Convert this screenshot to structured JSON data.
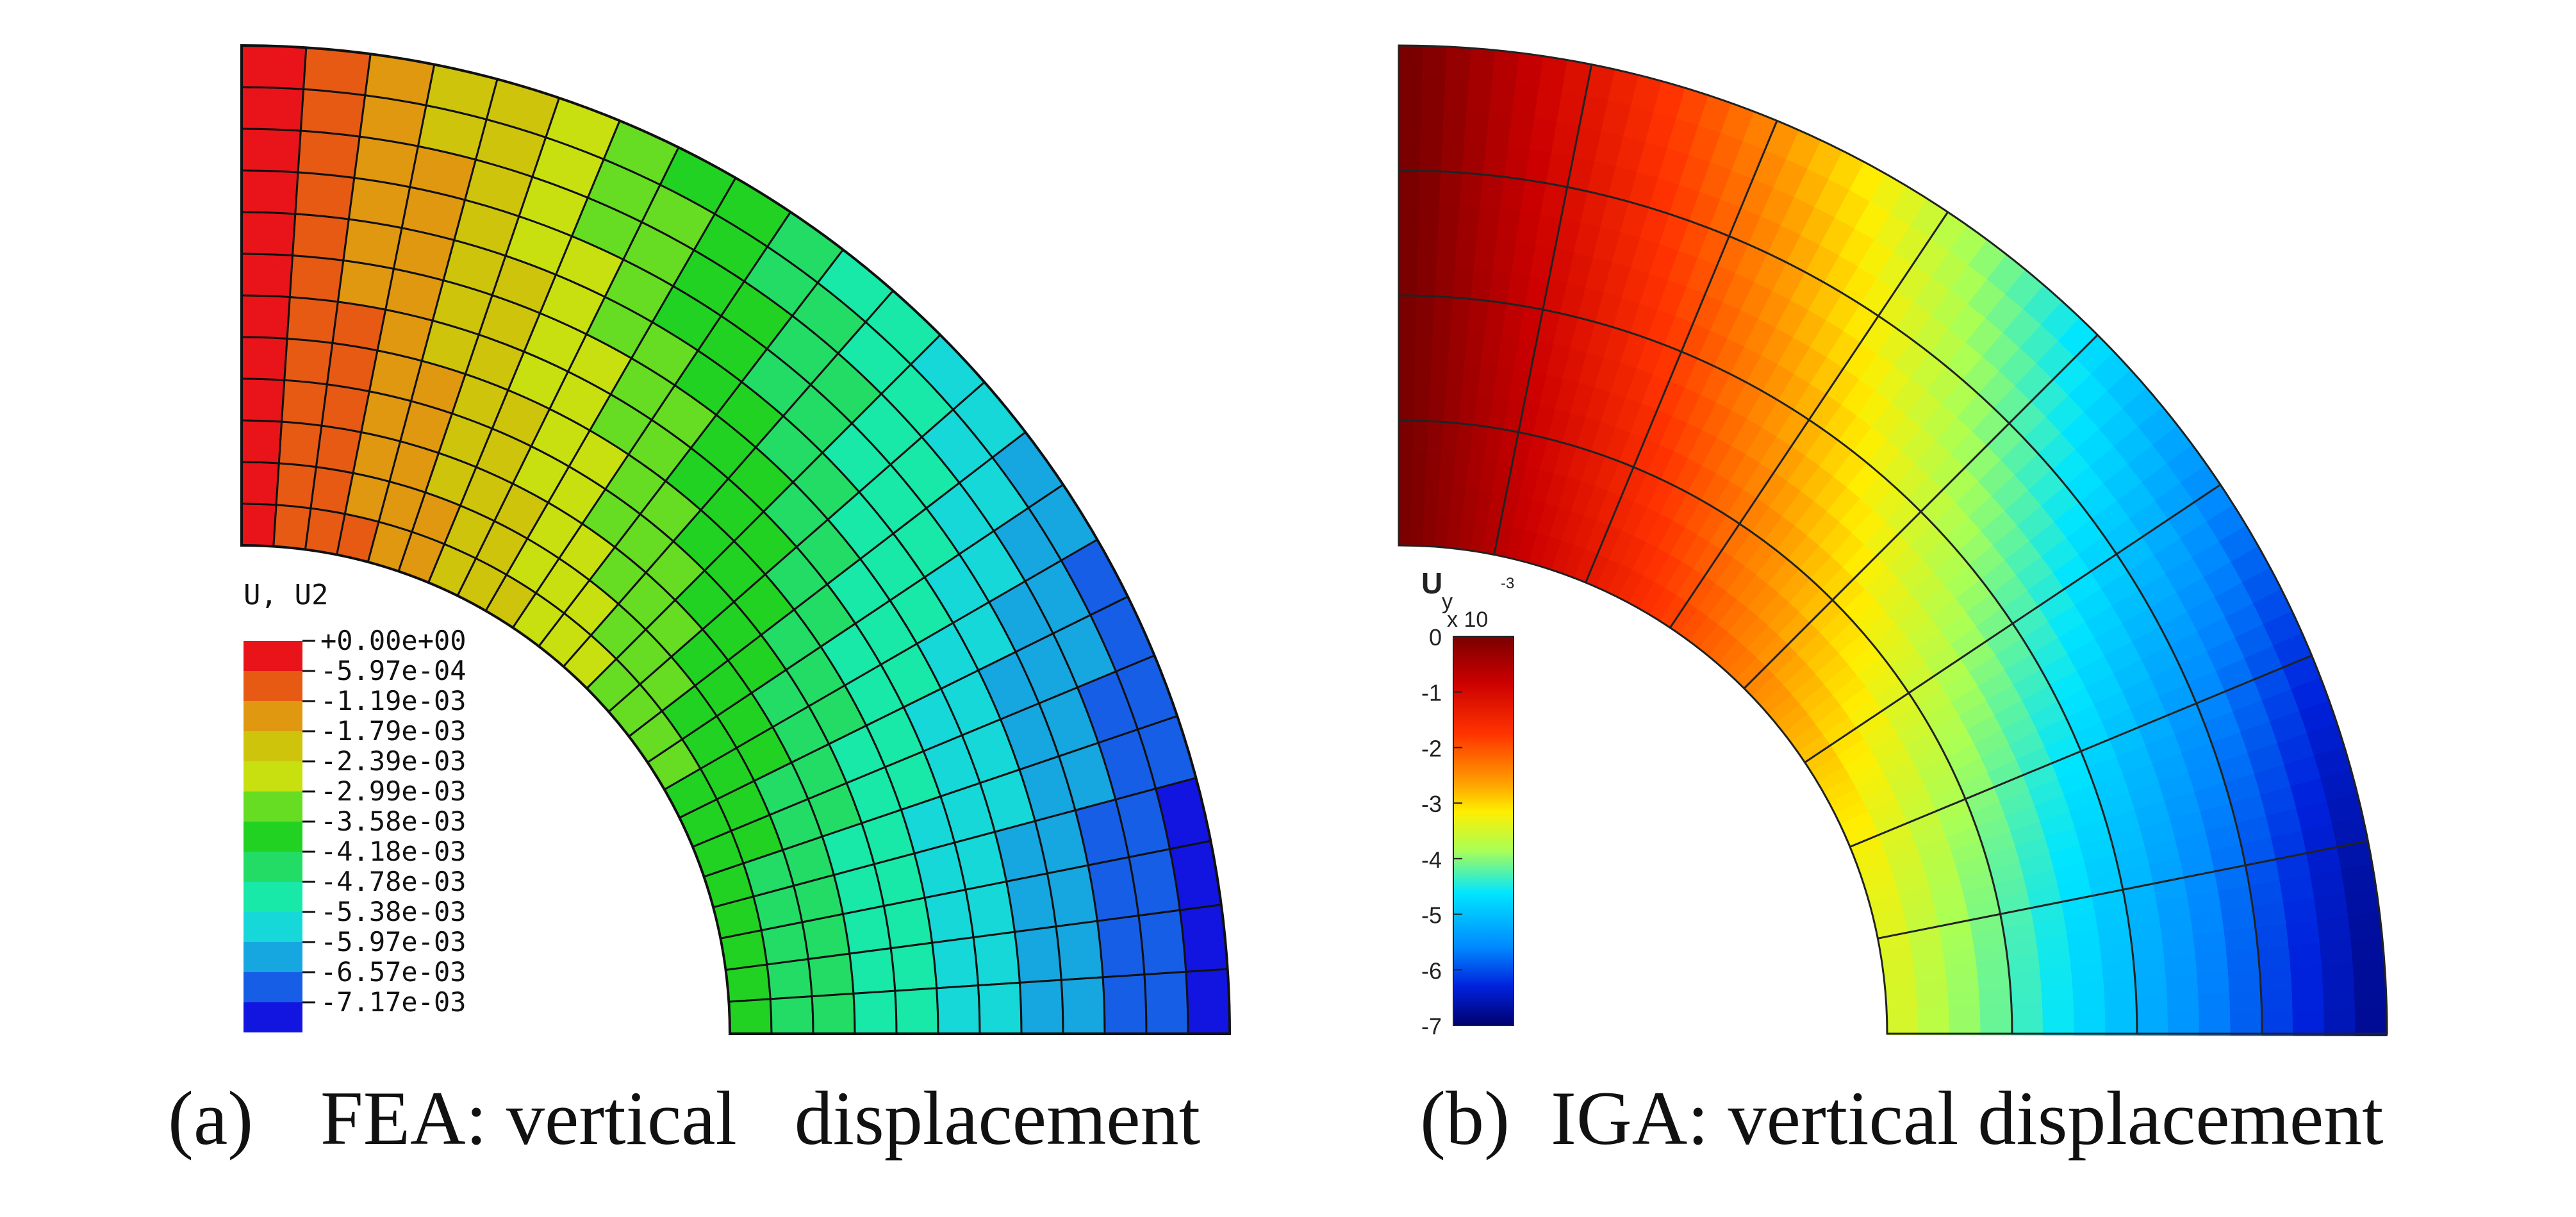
{
  "panels": [
    {
      "caption_letter": "(a)",
      "caption_text": "FEA: vertical   displacement",
      "legend": {
        "title": "U, U2",
        "labels": [
          "+0.00e+00",
          "-5.97e-04",
          "-1.19e-03",
          "-1.79e-03",
          "-2.39e-03",
          "-2.99e-03",
          "-3.58e-03",
          "-4.18e-03",
          "-4.78e-03",
          "-5.38e-03",
          "-5.97e-03",
          "-6.57e-03",
          "-7.17e-03"
        ],
        "colors": [
          "#e8141a",
          "#e65a14",
          "#e09810",
          "#cfc40c",
          "#c9e010",
          "#66dc22",
          "#22d222",
          "#22dc66",
          "#18e8a8",
          "#16d8d8",
          "#16a6e0",
          "#165ee6",
          "#1214e0"
        ]
      },
      "mesh": {
        "radial_divisions": 12,
        "circumferential_divisions": 24
      },
      "field": {
        "min": -0.00717,
        "max": 0.0
      }
    },
    {
      "caption_letter": "(b)",
      "caption_text": "IGA: vertical displacement",
      "legend": {
        "title_main": "U",
        "title_sub": "y",
        "multiplier": "x 10",
        "exponent": "-3",
        "ticks": [
          "0",
          "-1",
          "-2",
          "-3",
          "-4",
          "-5",
          "-6",
          "-7"
        ],
        "range": [
          0,
          -7
        ]
      },
      "mesh": {
        "radial_divisions": 4,
        "circumferential_divisions": 8
      },
      "field": {
        "min": -7.2,
        "max": 0.0
      }
    }
  ]
}
